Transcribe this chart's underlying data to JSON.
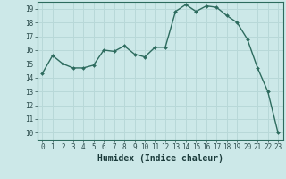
{
  "x": [
    0,
    1,
    2,
    3,
    4,
    5,
    6,
    7,
    8,
    9,
    10,
    11,
    12,
    13,
    14,
    15,
    16,
    17,
    18,
    19,
    20,
    21,
    22,
    23
  ],
  "y": [
    14.3,
    15.6,
    15.0,
    14.7,
    14.7,
    14.9,
    16.0,
    15.9,
    16.3,
    15.7,
    15.5,
    16.2,
    16.2,
    18.8,
    19.3,
    18.8,
    19.2,
    19.1,
    18.5,
    18.0,
    16.8,
    14.7,
    13.0,
    10.0
  ],
  "line_color": "#2d6b5e",
  "marker": "D",
  "markersize": 2.0,
  "linewidth": 1.0,
  "bg_color": "#cce8e8",
  "grid_color": "#b8d8d8",
  "xlabel": "Humidex (Indice chaleur)",
  "xlim": [
    -0.5,
    23.5
  ],
  "ylim": [
    9.5,
    19.5
  ],
  "yticks": [
    10,
    11,
    12,
    13,
    14,
    15,
    16,
    17,
    18,
    19
  ],
  "xticks": [
    0,
    1,
    2,
    3,
    4,
    5,
    6,
    7,
    8,
    9,
    10,
    11,
    12,
    13,
    14,
    15,
    16,
    17,
    18,
    19,
    20,
    21,
    22,
    23
  ],
  "tick_fontsize": 5.5,
  "label_fontsize": 7.0
}
